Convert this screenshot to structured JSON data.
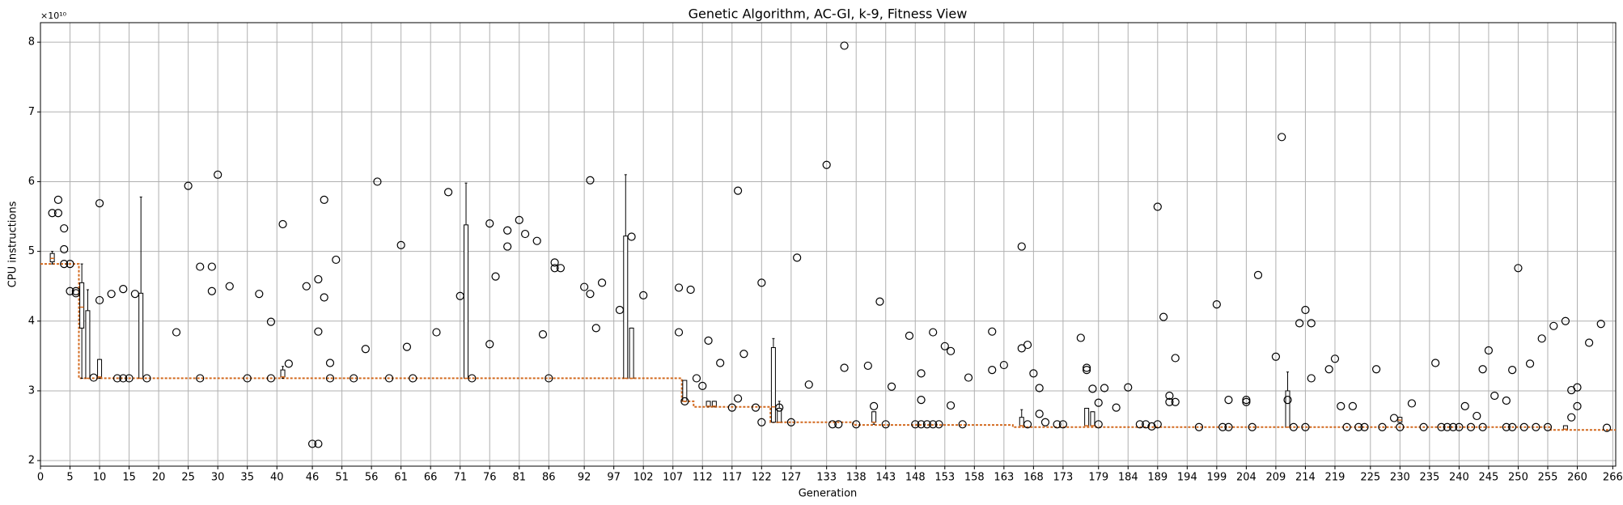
{
  "chart_data": {
    "type": "box",
    "title": "Genetic Algorithm, AC-GI, k-9, Fitness View",
    "x_label": "Generation",
    "y_label": "CPU instructions",
    "y_offset_label": "×10¹⁰",
    "xlim": [
      0,
      266.5
    ],
    "ylim": [
      1.92,
      8.28
    ],
    "xticks": [
      0,
      5,
      10,
      15,
      20,
      25,
      30,
      35,
      40,
      46,
      51,
      56,
      61,
      66,
      71,
      76,
      81,
      86,
      92,
      97,
      102,
      107,
      112,
      117,
      122,
      127,
      133,
      138,
      143,
      148,
      153,
      158,
      163,
      168,
      173,
      179,
      184,
      189,
      194,
      199,
      204,
      209,
      214,
      219,
      225,
      230,
      235,
      240,
      245,
      250,
      255,
      260,
      266
    ],
    "yticks": [
      2,
      3,
      4,
      5,
      6,
      7,
      8
    ],
    "grid": true,
    "box_color": "#000000",
    "median_color": "#d2691e",
    "boxes": [
      {
        "x": 2,
        "whislo": 4.82,
        "q1": 4.85,
        "med": 4.9,
        "q3": 4.97,
        "whishi": 5.0
      },
      {
        "x": 7,
        "whislo": 3.18,
        "q1": 3.9,
        "med": 4.2,
        "q3": 4.55,
        "whishi": 4.82
      },
      {
        "x": 8,
        "whislo": 3.18,
        "q1": 3.18,
        "med": 3.18,
        "q3": 4.15,
        "whishi": 4.45
      },
      {
        "x": 10,
        "whislo": 3.18,
        "q1": 3.2,
        "med": 3.2,
        "q3": 3.45,
        "whishi": 3.45
      },
      {
        "x": 17,
        "whislo": 3.18,
        "q1": 3.18,
        "med": 3.18,
        "q3": 4.4,
        "whishi": 5.78
      },
      {
        "x": 41,
        "whislo": 3.18,
        "q1": 3.2,
        "med": 3.2,
        "q3": 3.3,
        "whishi": 3.35
      },
      {
        "x": 72,
        "whislo": 3.18,
        "q1": 3.18,
        "med": 3.18,
        "q3": 5.38,
        "whishi": 5.98
      },
      {
        "x": 99,
        "whislo": 3.18,
        "q1": 3.18,
        "med": 3.18,
        "q3": 5.22,
        "whishi": 6.1
      },
      {
        "x": 100,
        "whislo": 3.18,
        "q1": 3.18,
        "med": 3.18,
        "q3": 3.9,
        "whishi": 3.9
      },
      {
        "x": 109,
        "whislo": 2.85,
        "q1": 2.85,
        "med": 2.85,
        "q3": 3.15,
        "whishi": 3.15
      },
      {
        "x": 113,
        "whislo": 2.77,
        "q1": 2.78,
        "med": 2.78,
        "q3": 2.85,
        "whishi": 2.85
      },
      {
        "x": 114,
        "whislo": 2.77,
        "q1": 2.78,
        "med": 2.78,
        "q3": 2.85,
        "whishi": 2.85
      },
      {
        "x": 124,
        "whislo": 2.55,
        "q1": 2.55,
        "med": 2.77,
        "q3": 3.62,
        "whishi": 3.75
      },
      {
        "x": 125,
        "whislo": 2.55,
        "q1": 2.55,
        "med": 2.55,
        "q3": 2.75,
        "whishi": 2.85
      },
      {
        "x": 141,
        "whislo": 2.52,
        "q1": 2.55,
        "med": 2.55,
        "q3": 2.7,
        "whishi": 2.7
      },
      {
        "x": 166,
        "whislo": 2.5,
        "q1": 2.5,
        "med": 2.5,
        "q3": 2.62,
        "whishi": 2.73
      },
      {
        "x": 177,
        "whislo": 2.5,
        "q1": 2.5,
        "med": 2.5,
        "q3": 2.75,
        "whishi": 2.75
      },
      {
        "x": 178,
        "whislo": 2.5,
        "q1": 2.5,
        "med": 2.5,
        "q3": 2.7,
        "whishi": 2.7
      },
      {
        "x": 211,
        "whislo": 2.48,
        "q1": 2.48,
        "med": 2.48,
        "q3": 3.0,
        "whishi": 3.27
      },
      {
        "x": 230,
        "whislo": 2.55,
        "q1": 2.55,
        "med": 2.58,
        "q3": 2.62,
        "whishi": 2.62
      },
      {
        "x": 258,
        "whislo": 2.45,
        "q1": 2.45,
        "med": 2.45,
        "q3": 2.5,
        "whishi": 2.5
      }
    ],
    "median_line": {
      "x": [
        0,
        6.5,
        6.5,
        108.5,
        108.5,
        110.5,
        110.5,
        123.5,
        123.5,
        137.5,
        137.5,
        164.5,
        164.5,
        255.5,
        255.5,
        266.5
      ],
      "values": [
        4.82,
        4.82,
        3.18,
        3.18,
        2.85,
        2.85,
        2.77,
        2.77,
        2.55,
        2.55,
        2.51,
        2.51,
        2.48,
        2.48,
        2.44,
        2.44
      ]
    },
    "fliers": {
      "x": [
        2,
        3,
        3,
        4,
        4,
        4,
        5,
        5,
        6,
        6,
        9,
        10,
        10,
        12,
        13,
        14,
        14,
        15,
        16,
        18,
        23,
        25,
        27,
        27,
        29,
        29,
        30,
        32,
        35,
        37,
        39,
        39,
        41,
        42,
        45,
        46,
        47,
        47,
        47,
        48,
        48,
        49,
        49,
        50,
        53,
        55,
        57,
        59,
        61,
        62,
        63,
        67,
        69,
        71,
        73,
        76,
        76,
        77,
        79,
        79,
        81,
        82,
        84,
        85,
        86,
        87,
        87,
        88,
        92,
        93,
        93,
        94,
        95,
        98,
        100,
        102,
        108,
        108,
        109,
        110,
        111,
        112,
        113,
        115,
        117,
        118,
        118,
        119,
        121,
        122,
        122,
        125,
        127,
        128,
        130,
        133,
        134,
        135,
        136,
        136,
        138,
        140,
        141,
        142,
        143,
        144,
        147,
        148,
        149,
        149,
        149,
        150,
        151,
        151,
        152,
        153,
        154,
        154,
        156,
        157,
        161,
        161,
        163,
        166,
        166,
        167,
        167,
        168,
        169,
        169,
        170,
        172,
        173,
        176,
        177,
        177,
        178,
        179,
        179,
        180,
        182,
        184,
        186,
        187,
        188,
        189,
        189,
        190,
        191,
        191,
        192,
        192,
        196,
        199,
        200,
        201,
        201,
        204,
        204,
        205,
        206,
        209,
        210,
        211,
        212,
        213,
        214,
        214,
        215,
        215,
        218,
        219,
        220,
        221,
        222,
        223,
        224,
        226,
        227,
        229,
        230,
        232,
        234,
        236,
        237,
        238,
        239,
        240,
        241,
        242,
        243,
        244,
        244,
        245,
        246,
        248,
        248,
        249,
        249,
        250,
        251,
        252,
        253,
        254,
        255,
        256,
        258,
        259,
        259,
        260,
        260,
        262,
        264,
        265
      ],
      "y": [
        5.55,
        5.55,
        5.74,
        5.33,
        5.03,
        4.82,
        4.82,
        4.43,
        4.43,
        4.4,
        3.19,
        5.69,
        4.3,
        4.39,
        3.18,
        4.46,
        3.18,
        3.18,
        4.39,
        3.18,
        3.84,
        5.94,
        4.78,
        3.18,
        4.78,
        4.43,
        6.1,
        4.5,
        3.18,
        4.39,
        3.99,
        3.18,
        5.39,
        3.39,
        4.5,
        2.24,
        2.24,
        4.6,
        3.85,
        5.74,
        4.34,
        3.4,
        3.18,
        4.88,
        3.18,
        3.6,
        6.0,
        3.18,
        5.09,
        3.63,
        3.18,
        3.84,
        5.85,
        4.36,
        3.18,
        5.4,
        3.67,
        4.64,
        5.07,
        5.3,
        5.45,
        5.25,
        5.15,
        3.81,
        3.18,
        4.84,
        4.76,
        4.76,
        4.49,
        6.02,
        4.39,
        3.9,
        4.55,
        4.16,
        5.21,
        4.37,
        4.48,
        3.84,
        2.85,
        4.45,
        3.18,
        3.07,
        3.72,
        3.4,
        2.76,
        5.87,
        2.89,
        3.53,
        2.76,
        4.55,
        2.55,
        2.76,
        2.55,
        4.91,
        3.09,
        6.24,
        2.52,
        2.52,
        7.95,
        3.33,
        2.52,
        3.36,
        2.78,
        4.28,
        2.52,
        3.06,
        3.79,
        2.52,
        2.52,
        2.87,
        3.25,
        2.52,
        2.52,
        3.84,
        2.52,
        3.64,
        3.57,
        2.79,
        2.52,
        3.19,
        3.85,
        3.3,
        3.37,
        3.61,
        5.07,
        3.66,
        2.52,
        3.25,
        3.04,
        2.67,
        2.55,
        2.52,
        2.52,
        3.76,
        3.33,
        3.3,
        3.03,
        2.52,
        2.83,
        3.04,
        2.76,
        3.05,
        2.52,
        2.52,
        2.49,
        2.52,
        5.64,
        4.06,
        2.93,
        2.84,
        2.84,
        3.47,
        2.48,
        4.24,
        2.48,
        2.48,
        2.87,
        2.87,
        2.84,
        2.48,
        4.66,
        3.49,
        6.64,
        2.87,
        2.48,
        3.97,
        2.48,
        4.16,
        3.97,
        3.18,
        3.31,
        3.46,
        2.78,
        2.48,
        2.78,
        2.48,
        2.48,
        3.31,
        2.48,
        2.61,
        2.48,
        2.82,
        2.48,
        3.4,
        2.48,
        2.48,
        2.48,
        2.48,
        2.78,
        2.48,
        2.64,
        2.48,
        3.31,
        3.58,
        2.93,
        2.86,
        2.48,
        2.48,
        3.3,
        4.76,
        2.48,
        3.39,
        2.48,
        3.75,
        2.48,
        3.93,
        4.0,
        3.01,
        2.62,
        3.05,
        2.78,
        3.69,
        3.96,
        2.47
      ]
    }
  }
}
